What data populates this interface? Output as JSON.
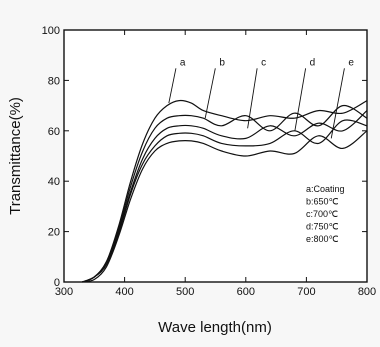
{
  "chart_data": {
    "type": "line",
    "xlabel": "Wave length(nm)",
    "ylabel": "Transmittance(%)",
    "xlim": [
      300,
      800
    ],
    "ylim": [
      0,
      100
    ],
    "xticks": [
      300,
      400,
      500,
      600,
      700,
      800
    ],
    "yticks": [
      0,
      20,
      40,
      60,
      80,
      100
    ],
    "legend": {
      "placement": "lower-right",
      "entries": [
        "a:Coating",
        "b:650℃",
        "c:700℃",
        "d:750℃",
        "e:800℃"
      ]
    },
    "series": [
      {
        "name": "a",
        "x": [
          330,
          350,
          370,
          390,
          410,
          430,
          450,
          470,
          490,
          510,
          530,
          560,
          600,
          640,
          680,
          720,
          760,
          800
        ],
        "y": [
          0,
          2,
          8,
          22,
          40,
          55,
          65,
          70,
          72,
          71,
          68,
          66,
          64,
          66,
          65,
          68,
          67,
          72
        ]
      },
      {
        "name": "b",
        "x": [
          330,
          350,
          370,
          390,
          410,
          430,
          450,
          470,
          490,
          510,
          530,
          560,
          600,
          640,
          680,
          720,
          760,
          800
        ],
        "y": [
          0,
          2,
          8,
          21,
          38,
          52,
          61,
          65,
          66,
          66,
          65,
          62,
          66,
          60,
          67,
          62,
          70,
          65
        ]
      },
      {
        "name": "c",
        "x": [
          330,
          350,
          370,
          390,
          410,
          430,
          450,
          470,
          490,
          510,
          530,
          560,
          600,
          640,
          680,
          720,
          760,
          800
        ],
        "y": [
          0,
          2,
          7,
          20,
          36,
          49,
          57,
          61,
          62,
          62,
          61,
          58,
          57,
          62,
          58,
          63,
          60,
          68
        ]
      },
      {
        "name": "d",
        "x": [
          330,
          350,
          370,
          390,
          410,
          430,
          450,
          470,
          490,
          510,
          530,
          560,
          600,
          640,
          680,
          720,
          760,
          800
        ],
        "y": [
          0,
          2,
          7,
          19,
          35,
          47,
          54,
          58,
          59,
          59,
          58,
          55,
          54,
          55,
          60,
          55,
          64,
          62
        ]
      },
      {
        "name": "e",
        "x": [
          330,
          350,
          370,
          390,
          410,
          430,
          450,
          470,
          490,
          510,
          530,
          560,
          600,
          640,
          680,
          720,
          760,
          800
        ],
        "y": [
          0,
          1,
          6,
          18,
          33,
          45,
          52,
          55,
          56,
          56,
          55,
          52,
          50,
          52,
          51,
          58,
          53,
          60
        ]
      }
    ],
    "curve_labels": [
      {
        "text": "a",
        "x": 488,
        "y": 86,
        "arrow_to": [
          473,
          71
        ]
      },
      {
        "text": "b",
        "x": 553,
        "y": 86,
        "arrow_to": [
          533,
          65
        ]
      },
      {
        "text": "c",
        "x": 622,
        "y": 86,
        "arrow_to": [
          603,
          61
        ]
      },
      {
        "text": "d",
        "x": 702,
        "y": 86,
        "arrow_to": [
          681,
          60
        ]
      },
      {
        "text": "e",
        "x": 766,
        "y": 86,
        "arrow_to": [
          741,
          57
        ]
      }
    ]
  }
}
